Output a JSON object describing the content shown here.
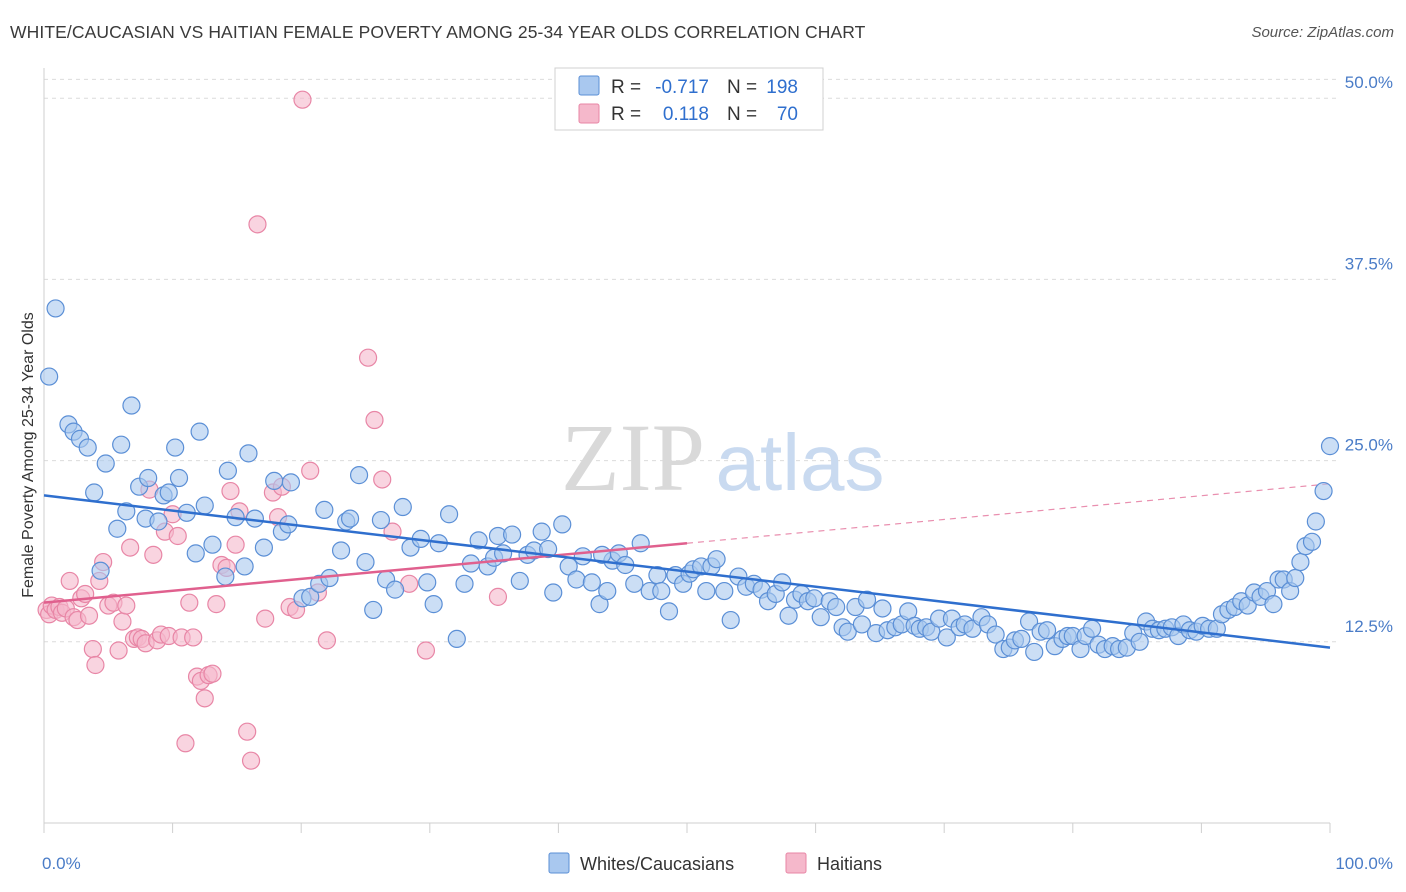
{
  "title": "WHITE/CAUCASIAN VS HAITIAN FEMALE POVERTY AMONG 25-34 YEAR OLDS CORRELATION CHART",
  "source": "Source: ZipAtlas.com",
  "watermark": {
    "zip": "ZIP",
    "atlas": "atlas"
  },
  "colors": {
    "blue_fill": "#a9c8ef",
    "blue_stroke": "#5b8fd6",
    "blue_line": "#2f6fce",
    "pink_fill": "#f5b8cb",
    "pink_stroke": "#e886a6",
    "pink_line": "#e0608e",
    "axis_text": "#4a7cc7",
    "grid": "#dcdcdc"
  },
  "stats_box": {
    "rows": [
      {
        "r_label": "R =",
        "r_value": "-0.717",
        "n_label": "N =",
        "n_value": "198",
        "series": "blue"
      },
      {
        "r_label": "R =",
        "r_value": "0.118",
        "n_label": "N =",
        "n_value": "70",
        "series": "pink"
      }
    ]
  },
  "chart_data": {
    "type": "scatter",
    "title": "WHITE/CAUCASIAN VS HAITIAN FEMALE POVERTY AMONG 25-34 YEAR OLDS CORRELATION CHART",
    "xlabel": "",
    "ylabel": "Female Poverty Among 25-34 Year Olds",
    "xlim": [
      0,
      100
    ],
    "ylim": [
      0,
      52.5
    ],
    "x_tick_labels": [
      {
        "value": 0,
        "label": "0.0%"
      },
      {
        "value": 100,
        "label": "100.0%"
      }
    ],
    "y_tick_labels": [
      {
        "value": 12.5,
        "label": "12.5%"
      },
      {
        "value": 25,
        "label": "25.0%"
      },
      {
        "value": 37.5,
        "label": "37.5%"
      },
      {
        "value": 50,
        "label": "50.0%"
      }
    ],
    "grid": true,
    "legend_position": "bottom-center",
    "series": [
      {
        "name": "Whites/Caucasians",
        "color": "blue",
        "trend": {
          "x": [
            0,
            100
          ],
          "y": [
            22.6,
            12.1
          ],
          "dashed_extension": false
        },
        "points": [
          [
            0.4,
            30.8
          ],
          [
            0.9,
            35.5
          ],
          [
            1.9,
            27.5
          ],
          [
            2.3,
            27.0
          ],
          [
            2.8,
            26.5
          ],
          [
            3.4,
            25.9
          ],
          [
            3.9,
            22.8
          ],
          [
            4.4,
            17.4
          ],
          [
            4.8,
            24.8
          ],
          [
            5.7,
            20.3
          ],
          [
            6.0,
            26.1
          ],
          [
            6.4,
            21.5
          ],
          [
            6.8,
            28.8
          ],
          [
            7.4,
            23.2
          ],
          [
            7.9,
            21.0
          ],
          [
            8.1,
            23.8
          ],
          [
            8.9,
            20.8
          ],
          [
            9.3,
            22.6
          ],
          [
            9.7,
            22.8
          ],
          [
            10.2,
            25.9
          ],
          [
            10.5,
            23.8
          ],
          [
            11.1,
            21.4
          ],
          [
            11.8,
            18.6
          ],
          [
            12.1,
            27.0
          ],
          [
            12.5,
            21.9
          ],
          [
            13.1,
            19.2
          ],
          [
            14.1,
            17.0
          ],
          [
            14.3,
            24.3
          ],
          [
            14.9,
            21.1
          ],
          [
            15.6,
            17.7
          ],
          [
            15.9,
            25.5
          ],
          [
            16.4,
            21.0
          ],
          [
            17.1,
            19.0
          ],
          [
            17.9,
            23.6
          ],
          [
            18.5,
            20.1
          ],
          [
            19.0,
            20.6
          ],
          [
            19.2,
            23.5
          ],
          [
            20.1,
            15.5
          ],
          [
            20.7,
            15.6
          ],
          [
            21.4,
            16.5
          ],
          [
            21.8,
            21.6
          ],
          [
            22.2,
            16.9
          ],
          [
            23.1,
            18.8
          ],
          [
            23.5,
            20.8
          ],
          [
            23.8,
            21.0
          ],
          [
            24.5,
            24.0
          ],
          [
            25.0,
            18.0
          ],
          [
            25.6,
            14.7
          ],
          [
            26.2,
            20.9
          ],
          [
            26.6,
            16.8
          ],
          [
            27.3,
            16.1
          ],
          [
            27.9,
            21.8
          ],
          [
            28.5,
            19.0
          ],
          [
            29.3,
            19.6
          ],
          [
            29.8,
            16.6
          ],
          [
            30.3,
            15.1
          ],
          [
            30.7,
            19.3
          ],
          [
            31.5,
            21.3
          ],
          [
            32.1,
            12.7
          ],
          [
            32.7,
            16.5
          ],
          [
            33.2,
            17.9
          ],
          [
            33.8,
            19.5
          ],
          [
            34.5,
            17.7
          ],
          [
            35.0,
            18.3
          ],
          [
            35.3,
            19.8
          ],
          [
            35.7,
            18.6
          ],
          [
            36.4,
            19.9
          ],
          [
            37.0,
            16.7
          ],
          [
            37.6,
            18.5
          ],
          [
            38.1,
            18.8
          ],
          [
            38.7,
            20.1
          ],
          [
            39.2,
            18.9
          ],
          [
            39.6,
            15.9
          ],
          [
            40.3,
            20.6
          ],
          [
            40.8,
            17.7
          ],
          [
            41.4,
            16.8
          ],
          [
            41.9,
            18.4
          ],
          [
            42.6,
            16.6
          ],
          [
            43.2,
            15.1
          ],
          [
            43.8,
            16.0
          ],
          [
            44.2,
            18.1
          ],
          [
            44.7,
            18.6
          ],
          [
            45.2,
            17.8
          ],
          [
            45.9,
            16.5
          ],
          [
            46.4,
            19.3
          ],
          [
            47.1,
            16.0
          ],
          [
            47.7,
            17.1
          ],
          [
            48.0,
            16.0
          ],
          [
            48.6,
            14.6
          ],
          [
            49.1,
            17.1
          ],
          [
            49.7,
            16.5
          ],
          [
            50.2,
            17.2
          ],
          [
            50.5,
            17.5
          ],
          [
            51.1,
            17.7
          ],
          [
            51.5,
            16.0
          ],
          [
            51.9,
            17.7
          ],
          [
            52.3,
            18.2
          ],
          [
            52.9,
            16.0
          ],
          [
            53.4,
            14.0
          ],
          [
            54.0,
            17.0
          ],
          [
            54.6,
            16.3
          ],
          [
            55.2,
            16.5
          ],
          [
            55.8,
            16.1
          ],
          [
            56.3,
            15.3
          ],
          [
            56.9,
            15.8
          ],
          [
            57.4,
            16.6
          ],
          [
            57.9,
            14.3
          ],
          [
            58.4,
            15.4
          ],
          [
            58.9,
            15.8
          ],
          [
            59.4,
            15.3
          ],
          [
            59.9,
            15.5
          ],
          [
            60.4,
            14.2
          ],
          [
            61.1,
            15.3
          ],
          [
            61.6,
            14.9
          ],
          [
            62.1,
            13.5
          ],
          [
            62.5,
            13.2
          ],
          [
            63.1,
            14.9
          ],
          [
            63.6,
            13.7
          ],
          [
            64.0,
            15.4
          ],
          [
            64.7,
            13.1
          ],
          [
            65.2,
            14.8
          ],
          [
            65.6,
            13.3
          ],
          [
            66.2,
            13.5
          ],
          [
            66.7,
            13.7
          ],
          [
            67.2,
            14.6
          ],
          [
            67.7,
            13.6
          ],
          [
            68.1,
            13.4
          ],
          [
            68.6,
            13.5
          ],
          [
            69.0,
            13.2
          ],
          [
            69.6,
            14.1
          ],
          [
            70.2,
            12.8
          ],
          [
            70.6,
            14.1
          ],
          [
            71.2,
            13.5
          ],
          [
            71.6,
            13.7
          ],
          [
            72.2,
            13.4
          ],
          [
            72.9,
            14.2
          ],
          [
            73.4,
            13.7
          ],
          [
            74.0,
            13.0
          ],
          [
            74.6,
            12.0
          ],
          [
            75.1,
            12.1
          ],
          [
            75.5,
            12.6
          ],
          [
            76.0,
            12.7
          ],
          [
            76.6,
            13.9
          ],
          [
            77.0,
            11.8
          ],
          [
            77.5,
            13.2
          ],
          [
            78.0,
            13.3
          ],
          [
            78.6,
            12.2
          ],
          [
            79.2,
            12.7
          ],
          [
            79.6,
            12.9
          ],
          [
            80.0,
            12.9
          ],
          [
            80.6,
            12.0
          ],
          [
            81.0,
            12.9
          ],
          [
            81.5,
            13.4
          ],
          [
            82.0,
            12.3
          ],
          [
            82.5,
            12.0
          ],
          [
            83.1,
            12.2
          ],
          [
            83.6,
            12.0
          ],
          [
            84.2,
            12.1
          ],
          [
            84.7,
            13.1
          ],
          [
            85.2,
            12.5
          ],
          [
            85.7,
            13.9
          ],
          [
            86.2,
            13.4
          ],
          [
            86.7,
            13.3
          ],
          [
            87.2,
            13.4
          ],
          [
            87.7,
            13.5
          ],
          [
            88.2,
            12.9
          ],
          [
            88.6,
            13.7
          ],
          [
            89.1,
            13.3
          ],
          [
            89.6,
            13.2
          ],
          [
            90.1,
            13.6
          ],
          [
            90.6,
            13.4
          ],
          [
            91.2,
            13.4
          ],
          [
            91.6,
            14.4
          ],
          [
            92.1,
            14.7
          ],
          [
            92.6,
            14.9
          ],
          [
            93.1,
            15.3
          ],
          [
            93.6,
            15.0
          ],
          [
            94.1,
            15.9
          ],
          [
            94.6,
            15.6
          ],
          [
            95.1,
            16.0
          ],
          [
            95.6,
            15.1
          ],
          [
            96.0,
            16.8
          ],
          [
            96.4,
            16.8
          ],
          [
            96.9,
            16.0
          ],
          [
            97.3,
            16.9
          ],
          [
            97.7,
            18.0
          ],
          [
            98.1,
            19.1
          ],
          [
            98.6,
            19.4
          ],
          [
            98.9,
            20.8
          ],
          [
            99.5,
            22.9
          ],
          [
            100.0,
            26.0
          ],
          [
            43.4,
            18.5
          ]
        ]
      },
      {
        "name": "Haitians",
        "color": "pink",
        "trend": {
          "x": [
            0,
            50
          ],
          "y": [
            15.2,
            19.3
          ],
          "dashed_extension": true,
          "dashed_to": [
            100,
            23.4
          ]
        },
        "points": [
          [
            0.2,
            14.7
          ],
          [
            0.4,
            14.4
          ],
          [
            0.6,
            15.0
          ],
          [
            0.9,
            14.7
          ],
          [
            1.2,
            14.9
          ],
          [
            1.4,
            14.5
          ],
          [
            1.7,
            14.8
          ],
          [
            2.0,
            16.7
          ],
          [
            2.3,
            14.2
          ],
          [
            2.6,
            14.0
          ],
          [
            2.9,
            15.5
          ],
          [
            3.2,
            15.8
          ],
          [
            3.5,
            14.3
          ],
          [
            3.8,
            12.0
          ],
          [
            4.0,
            10.9
          ],
          [
            4.3,
            16.7
          ],
          [
            4.6,
            18.0
          ],
          [
            5.0,
            15.0
          ],
          [
            5.4,
            15.2
          ],
          [
            5.8,
            11.9
          ],
          [
            6.1,
            13.9
          ],
          [
            6.4,
            15.0
          ],
          [
            6.7,
            19.0
          ],
          [
            7.0,
            12.7
          ],
          [
            7.3,
            12.8
          ],
          [
            7.6,
            12.7
          ],
          [
            7.9,
            12.4
          ],
          [
            8.2,
            23.0
          ],
          [
            8.5,
            18.5
          ],
          [
            8.8,
            12.6
          ],
          [
            9.1,
            13.0
          ],
          [
            9.4,
            20.1
          ],
          [
            9.7,
            12.9
          ],
          [
            10.0,
            21.3
          ],
          [
            10.4,
            19.8
          ],
          [
            10.7,
            12.8
          ],
          [
            11.0,
            5.5
          ],
          [
            11.3,
            15.2
          ],
          [
            11.6,
            12.8
          ],
          [
            11.9,
            10.1
          ],
          [
            12.2,
            9.8
          ],
          [
            12.5,
            8.6
          ],
          [
            12.8,
            10.2
          ],
          [
            13.1,
            10.3
          ],
          [
            13.4,
            15.1
          ],
          [
            13.8,
            17.8
          ],
          [
            14.2,
            17.6
          ],
          [
            14.5,
            22.9
          ],
          [
            14.9,
            19.2
          ],
          [
            15.2,
            21.5
          ],
          [
            15.8,
            6.3
          ],
          [
            16.1,
            4.3
          ],
          [
            16.6,
            41.3
          ],
          [
            17.2,
            14.1
          ],
          [
            17.8,
            22.8
          ],
          [
            18.2,
            21.1
          ],
          [
            18.5,
            23.2
          ],
          [
            19.1,
            14.9
          ],
          [
            19.6,
            14.7
          ],
          [
            20.1,
            49.9
          ],
          [
            20.7,
            24.3
          ],
          [
            21.3,
            15.9
          ],
          [
            22.0,
            12.6
          ],
          [
            25.2,
            32.1
          ],
          [
            25.7,
            27.8
          ],
          [
            26.3,
            23.7
          ],
          [
            27.1,
            20.1
          ],
          [
            28.4,
            16.5
          ],
          [
            29.7,
            11.9
          ],
          [
            35.3,
            15.6
          ]
        ]
      }
    ]
  },
  "legend": {
    "items": [
      {
        "label": "Whites/Caucasians",
        "color": "blue"
      },
      {
        "label": "Haitians",
        "color": "pink"
      }
    ]
  }
}
